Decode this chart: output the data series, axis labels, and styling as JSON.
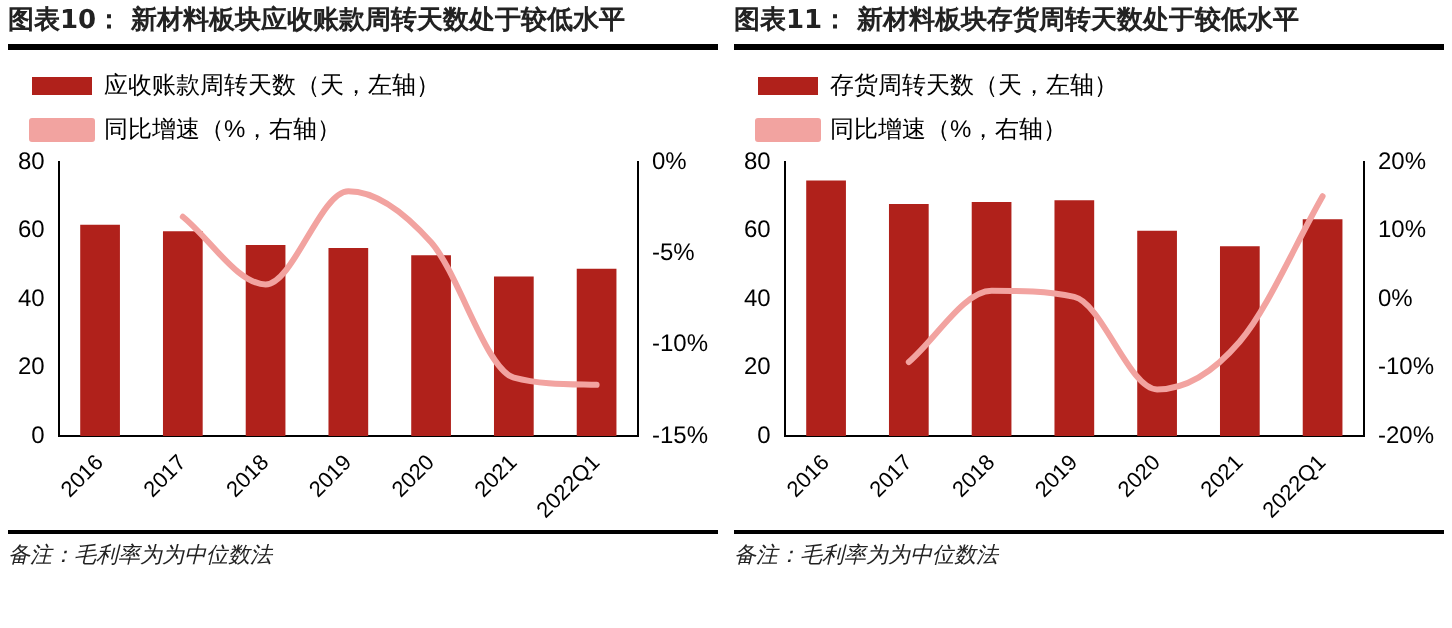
{
  "chart_data": [
    {
      "type": "bar",
      "title": "图表10：  新材料板块应收账款周转天数处于较低水平",
      "categories": [
        "2016",
        "2017",
        "2018",
        "2019",
        "2020",
        "2021",
        "2022Q1"
      ],
      "series": [
        {
          "name": "应收账款周转天数（天，左轴）",
          "color": "#b0211b",
          "values": [
            61.7,
            59.8,
            55.8,
            54.9,
            52.8,
            46.6,
            48.8
          ]
        },
        {
          "name": "同比增速（%，右轴）",
          "type": "line",
          "axis": "y2",
          "color": "#f2a3a0",
          "values": [
            null,
            -3.0,
            -6.7,
            -1.6,
            -4.4,
            -11.8,
            -12.2
          ]
        }
      ],
      "ylim": [
        0,
        80
      ],
      "yticks": [
        0,
        20,
        40,
        60,
        80
      ],
      "y2lim": [
        -15,
        0
      ],
      "y2ticks": [
        {
          "value": -15,
          "label": "-15%"
        },
        {
          "value": -10,
          "label": "-10%"
        },
        {
          "value": -5,
          "label": "-5%"
        },
        {
          "value": 0,
          "label": "0%"
        }
      ],
      "grid": false,
      "legend": "top left",
      "marker": "none",
      "annotations": [
        "备注：毛利率为为中位数法"
      ]
    },
    {
      "type": "bar",
      "title": "图表11：  新材料板块存货周转天数处于较低水平",
      "categories": [
        "2016",
        "2017",
        "2018",
        "2019",
        "2020",
        "2021",
        "2022Q1"
      ],
      "series": [
        {
          "name": "存货周转天数（天，左轴）",
          "color": "#b0211b",
          "values": [
            74.6,
            67.7,
            68.3,
            68.8,
            59.9,
            55.4,
            63.3
          ]
        },
        {
          "name": "同比增速（%，右轴）",
          "type": "line",
          "axis": "y2",
          "color": "#f2a3a0",
          "values": [
            null,
            -9.2,
            1.2,
            0.3,
            -13.2,
            -6.2,
            15.0
          ]
        }
      ],
      "ylim": [
        0,
        80
      ],
      "yticks": [
        0,
        20,
        40,
        60,
        80
      ],
      "y2lim": [
        -20,
        20
      ],
      "y2ticks": [
        {
          "value": -20,
          "label": "-20%"
        },
        {
          "value": -10,
          "label": "-10%"
        },
        {
          "value": 0,
          "label": "0%"
        },
        {
          "value": 10,
          "label": "10%"
        },
        {
          "value": 20,
          "label": "20%"
        }
      ],
      "grid": false,
      "legend": "top left",
      "marker": "none",
      "annotations": [
        "备注：毛利率为为中位数法"
      ]
    }
  ]
}
